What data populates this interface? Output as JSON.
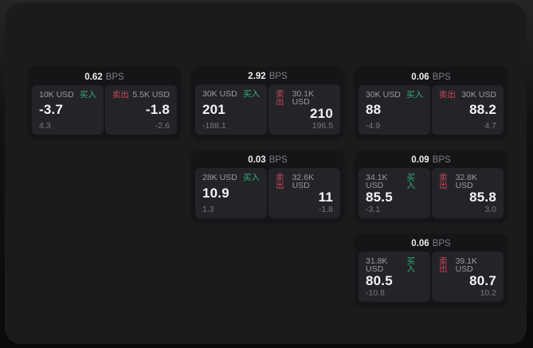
{
  "labels": {
    "bps_unit": "BPS",
    "buy": "买入",
    "sell": "卖出"
  },
  "colors": {
    "buy_green": "#2fae78",
    "sell_red": "#c4475c",
    "panel_bg": "#1b1b1d",
    "card_bg": "#151517",
    "tile_bg": "#242428",
    "value_white": "#f4f4f6",
    "muted_gray": "#99999f"
  },
  "cards": [
    {
      "bps": "0.62",
      "buy": {
        "amount": "10K USD",
        "value": "-3.7",
        "sub": "4.3"
      },
      "sell": {
        "amount": "5.5K USD",
        "value": "-1.8",
        "sub": "-2.6"
      }
    },
    {
      "bps": "2.92",
      "buy": {
        "amount": "30K USD",
        "value": "201",
        "sub": "-188.1"
      },
      "sell": {
        "amount": "30.1K USD",
        "value": "210",
        "sub": "196.5"
      }
    },
    {
      "bps": "0.06",
      "buy": {
        "amount": "30K USD",
        "value": "88",
        "sub": "-4.9"
      },
      "sell": {
        "amount": "30K USD",
        "value": "88.2",
        "sub": "4.7"
      }
    },
    {
      "bps": "0.03",
      "buy": {
        "amount": "28K USD",
        "value": "10.9",
        "sub": "1.3"
      },
      "sell": {
        "amount": "32.6K USD",
        "value": "11",
        "sub": "-1.8"
      }
    },
    {
      "bps": "0.09",
      "buy": {
        "amount": "34.1K USD",
        "value": "85.5",
        "sub": "-3.1"
      },
      "sell": {
        "amount": "32.8K USD",
        "value": "85.8",
        "sub": "3.0"
      }
    },
    {
      "bps": "0.06",
      "buy": {
        "amount": "31.8K USD",
        "value": "80.5",
        "sub": "-10.8"
      },
      "sell": {
        "amount": "39.1K USD",
        "value": "80.7",
        "sub": "10.2"
      }
    }
  ]
}
